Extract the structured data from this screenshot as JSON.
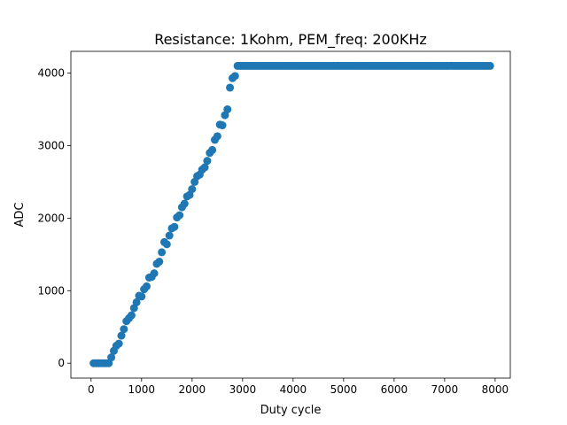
{
  "chart_data": {
    "type": "scatter",
    "title": "Resistance: 1Kohm, PEM_freq: 200KHz",
    "xlabel": "Duty cycle",
    "ylabel": "ADC",
    "xlim": [
      -400,
      8300
    ],
    "ylim": [
      -205,
      4300
    ],
    "xticks": [
      0,
      1000,
      2000,
      3000,
      4000,
      5000,
      6000,
      7000,
      8000
    ],
    "yticks": [
      0,
      1000,
      2000,
      3000,
      4000
    ],
    "grid": false,
    "legend": "none",
    "marker_color": "#1f77b4",
    "series": [
      {
        "x": [
          50,
          100,
          150,
          200,
          250,
          300,
          350,
          400,
          450,
          500,
          550,
          600,
          650,
          700,
          750,
          800,
          850,
          900,
          950,
          1000,
          1050,
          1100,
          1150,
          1200,
          1250,
          1300,
          1350,
          1400,
          1450,
          1500,
          1550,
          1600,
          1650,
          1700,
          1750,
          1800,
          1850,
          1900,
          1950,
          2000,
          2050,
          2100,
          2150,
          2200,
          2250,
          2300,
          2350,
          2400,
          2450,
          2500,
          2550,
          2600,
          2650,
          2700,
          2750,
          2800,
          2850,
          2900,
          2950,
          3000,
          3050,
          3100,
          3150,
          3200,
          3250,
          3300,
          3350,
          3400,
          3450,
          3500,
          3550,
          3600,
          3650,
          3700,
          3750,
          3800,
          3850,
          3900,
          3950,
          4000,
          4050,
          4100,
          4150,
          4200,
          4250,
          4300,
          4350,
          4400,
          4450,
          4500,
          4550,
          4600,
          4650,
          4700,
          4750,
          4800,
          4850,
          4900,
          4950,
          5000,
          5050,
          5100,
          5150,
          5200,
          5250,
          5300,
          5350,
          5400,
          5450,
          5500,
          5550,
          5600,
          5650,
          5700,
          5750,
          5800,
          5850,
          5900,
          5950,
          6000,
          6050,
          6100,
          6150,
          6200,
          6250,
          6300,
          6350,
          6400,
          6450,
          6500,
          6550,
          6600,
          6650,
          6700,
          6750,
          6800,
          6850,
          6900,
          6950,
          7000,
          7050,
          7100,
          7150,
          7200,
          7250,
          7300,
          7350,
          7400,
          7450,
          7500,
          7550,
          7600,
          7650,
          7700,
          7750,
          7800,
          7850,
          7900
        ],
        "y": [
          0,
          0,
          0,
          0,
          0,
          0,
          0,
          80,
          170,
          240,
          270,
          380,
          470,
          580,
          620,
          660,
          760,
          840,
          930,
          920,
          1020,
          1060,
          1180,
          1190,
          1240,
          1370,
          1400,
          1530,
          1670,
          1640,
          1760,
          1860,
          1880,
          2010,
          2040,
          2150,
          2200,
          2300,
          2320,
          2400,
          2500,
          2580,
          2600,
          2670,
          2700,
          2790,
          2900,
          2940,
          3080,
          3130,
          3290,
          3280,
          3420,
          3500,
          3800,
          3930,
          3960,
          4100,
          4100,
          4100,
          4100,
          4100,
          4100,
          4100,
          4100,
          4100,
          4100,
          4100,
          4100,
          4100,
          4100,
          4100,
          4100,
          4100,
          4100,
          4100,
          4100,
          4100,
          4100,
          4100,
          4100,
          4100,
          4100,
          4100,
          4100,
          4100,
          4100,
          4100,
          4100,
          4100,
          4100,
          4100,
          4100,
          4100,
          4100,
          4100,
          4100,
          4100,
          4100,
          4100,
          4100,
          4100,
          4100,
          4100,
          4100,
          4100,
          4100,
          4100,
          4100,
          4100,
          4100,
          4100,
          4100,
          4100,
          4100,
          4100,
          4100,
          4100,
          4100,
          4100,
          4100,
          4100,
          4100,
          4100,
          4100,
          4100,
          4100,
          4100,
          4100,
          4100,
          4100,
          4100,
          4100,
          4100,
          4100,
          4100,
          4100,
          4100,
          4100,
          4100,
          4100,
          4100,
          4100,
          4100,
          4100,
          4100,
          4100,
          4100,
          4100,
          4100,
          4100,
          4100,
          4100,
          4100,
          4100,
          4100,
          4100,
          4100
        ]
      }
    ]
  }
}
